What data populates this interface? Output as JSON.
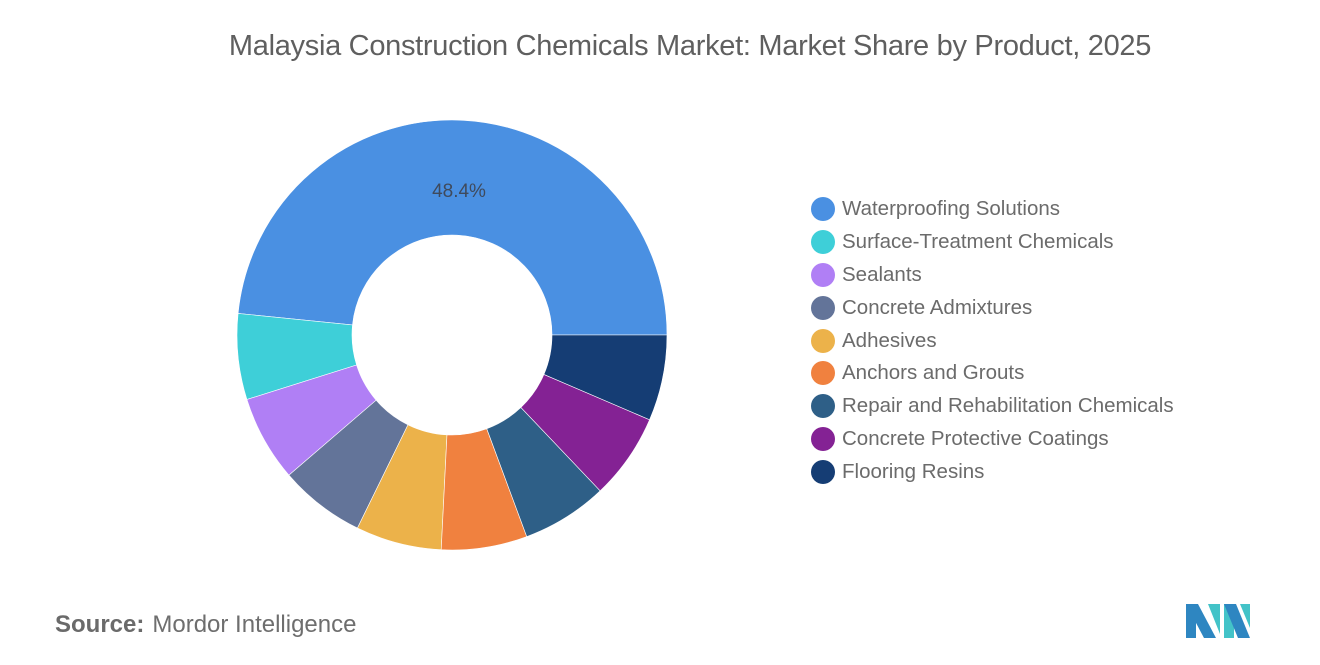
{
  "title": "Malaysia Construction Chemicals Market: Market Share by Product, 2025",
  "source": {
    "label": "Source:",
    "value": "Mordor Intelligence"
  },
  "chart_data": {
    "type": "pie",
    "subtype": "donut",
    "title": "Malaysia Construction Chemicals Market: Market Share by Product, 2025",
    "unit": "%",
    "categories": [
      "Waterproofing Solutions",
      "Surface-Treatment Chemicals",
      "Sealants",
      "Concrete Admixtures",
      "Adhesives",
      "Anchors and Grouts",
      "Repair and Rehabilitation Chemicals",
      "Concrete Protective Coatings",
      "Flooring Resins"
    ],
    "values": [
      48.4,
      6.45,
      6.45,
      6.45,
      6.45,
      6.45,
      6.45,
      6.45,
      6.45
    ],
    "colors": [
      "#4a90e2",
      "#3ecfd8",
      "#b07ff5",
      "#637499",
      "#ecb24a",
      "#f0813f",
      "#2e5f87",
      "#842294",
      "#153d74"
    ],
    "data_labels": [
      {
        "category": "Waterproofing Solutions",
        "text": "48.4%"
      }
    ],
    "legend_position": "right"
  },
  "legend": {
    "items": [
      {
        "label": "Waterproofing Solutions",
        "color": "#4a90e2"
      },
      {
        "label": "Surface-Treatment Chemicals",
        "color": "#3ecfd8"
      },
      {
        "label": "Sealants",
        "color": "#b07ff5"
      },
      {
        "label": "Concrete Admixtures",
        "color": "#637499"
      },
      {
        "label": "Adhesives",
        "color": "#ecb24a"
      },
      {
        "label": "Anchors and Grouts",
        "color": "#f0813f"
      },
      {
        "label": "Repair and Rehabilitation Chemicals",
        "color": "#2e5f87"
      },
      {
        "label": "Concrete Protective Coatings",
        "color": "#842294"
      },
      {
        "label": "Flooring Resins",
        "color": "#153d74"
      }
    ]
  },
  "logo": {
    "name": "mordor-intelligence-logo",
    "colors": [
      "#2e86c1",
      "#43c3c8"
    ]
  }
}
